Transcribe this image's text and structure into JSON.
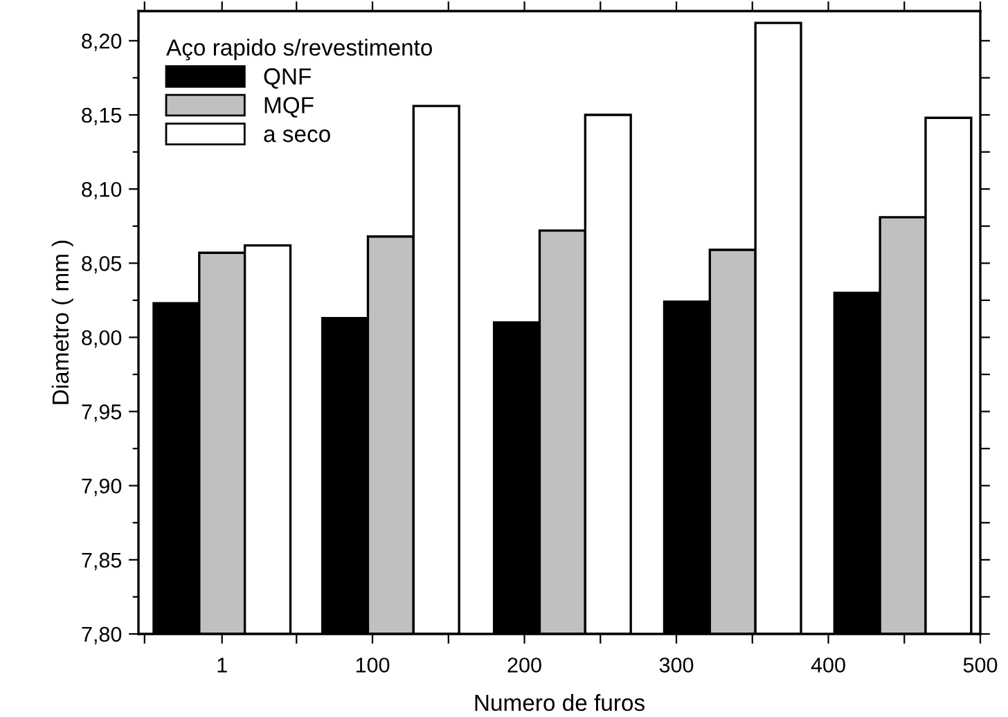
{
  "chart_data": {
    "type": "bar",
    "xlabel": "Numero de furos",
    "ylabel": "Diametro ( mm )",
    "legend_title": "Aço rapido s/revestimento",
    "legend": "top left",
    "grid": false,
    "x": [
      1,
      112,
      225,
      337,
      449
    ],
    "series": [
      {
        "name": "QNF",
        "color": "#000000",
        "values": [
          8.023,
          8.013,
          8.01,
          8.024,
          8.03
        ]
      },
      {
        "name": "MQF",
        "color": "#c0c0c0",
        "values": [
          8.057,
          8.068,
          8.072,
          8.059,
          8.081
        ]
      },
      {
        "name": "a seco",
        "color": "#ffffff",
        "values": [
          8.062,
          8.156,
          8.15,
          8.212,
          8.148
        ]
      }
    ],
    "xlim": [
      -54,
      500
    ],
    "xticks": [
      {
        "value": -50,
        "label": null
      },
      1,
      {
        "value": 50,
        "label": null
      },
      100,
      {
        "value": 150,
        "label": null
      },
      200,
      {
        "value": 250,
        "label": null
      },
      300,
      {
        "value": 350,
        "label": null
      },
      400,
      {
        "value": 450,
        "label": null
      },
      500
    ],
    "ylim": [
      7.8,
      8.22
    ],
    "yticks": [
      {
        "value": 7.8,
        "label": "7,80"
      },
      {
        "value": 7.825,
        "label": null
      },
      {
        "value": 7.85,
        "label": "7,85"
      },
      {
        "value": 7.875,
        "label": null
      },
      {
        "value": 7.9,
        "label": "7,90"
      },
      {
        "value": 7.925,
        "label": null
      },
      {
        "value": 7.95,
        "label": "7,95"
      },
      {
        "value": 7.975,
        "label": null
      },
      {
        "value": 8.0,
        "label": "8,00"
      },
      {
        "value": 8.025,
        "label": null
      },
      {
        "value": 8.05,
        "label": "8,05"
      },
      {
        "value": 8.075,
        "label": null
      },
      {
        "value": 8.1,
        "label": "8,10"
      },
      {
        "value": 8.125,
        "label": null
      },
      {
        "value": 8.15,
        "label": "8,15"
      },
      {
        "value": 8.175,
        "label": null
      },
      {
        "value": 8.2,
        "label": "8,20"
      }
    ]
  }
}
